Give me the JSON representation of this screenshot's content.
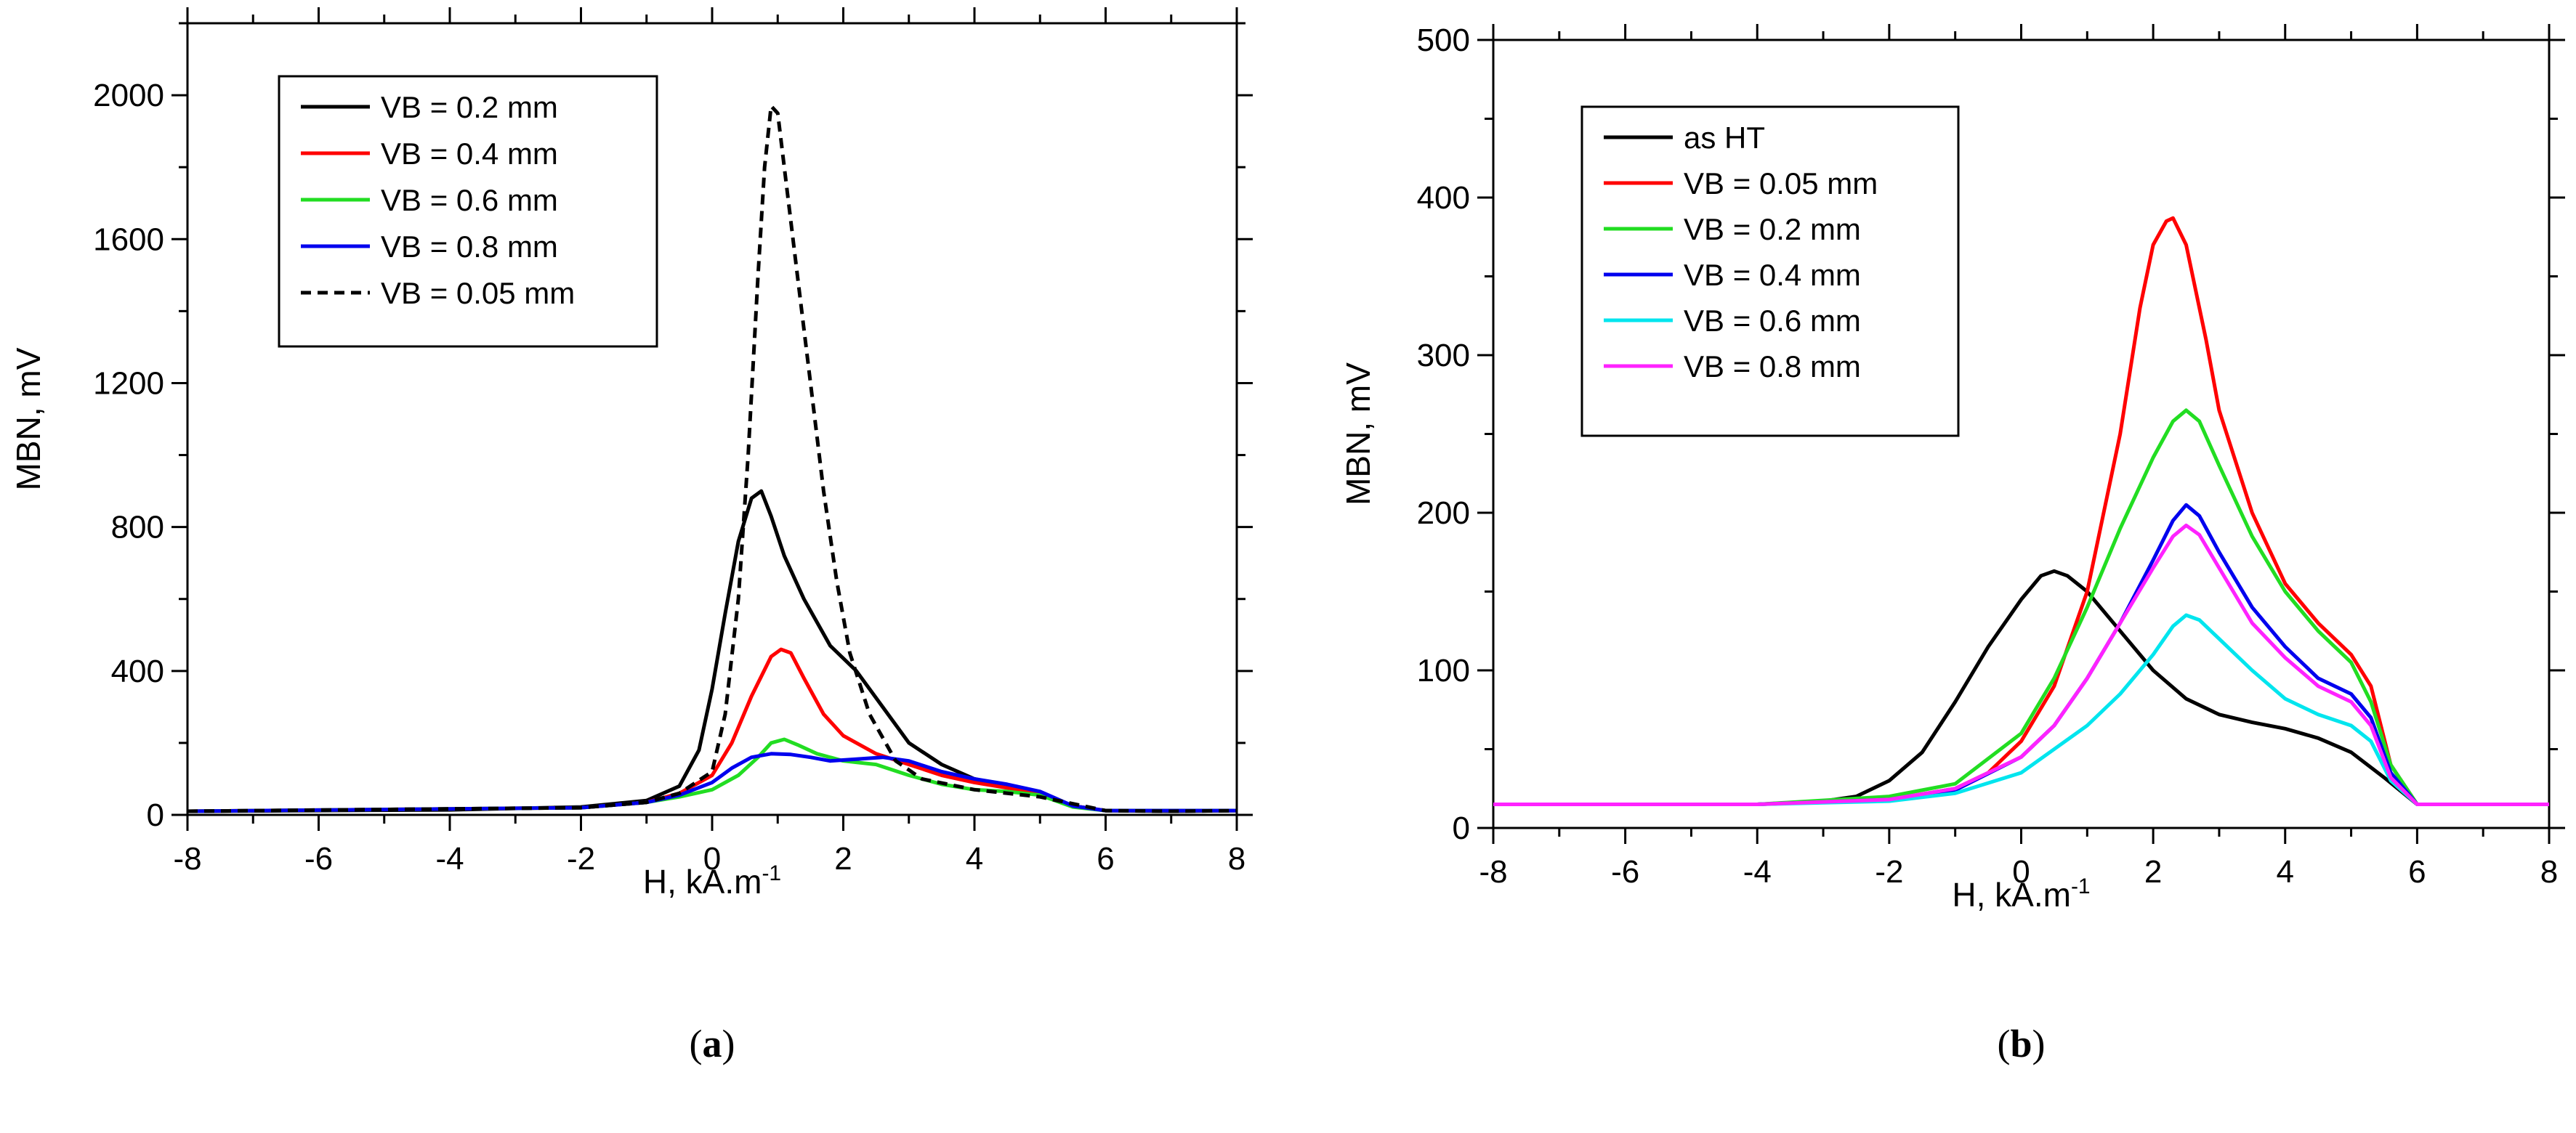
{
  "chart_data": [
    {
      "type": "line",
      "panel": "a",
      "caption": "(a)",
      "xlabel_main": "H, kA.m",
      "xlabel_sup": "-1",
      "ylabel": "MBN, mV",
      "xlim": [
        -8,
        8
      ],
      "ylim": [
        0,
        2200
      ],
      "xticks": [
        -8,
        -6,
        -4,
        -2,
        0,
        2,
        4,
        6,
        8
      ],
      "yticks": [
        0,
        400,
        800,
        1200,
        1600,
        2000
      ],
      "legend_position": "top-left",
      "series": [
        {
          "name": "VB = 0.2 mm",
          "color": "#000000",
          "dash": "solid",
          "x": [
            -8,
            -4,
            -2,
            -1,
            -0.5,
            -0.2,
            0,
            0.2,
            0.4,
            0.6,
            0.75,
            0.9,
            1.1,
            1.4,
            1.8,
            2.2,
            2.6,
            3.0,
            3.5,
            4.0,
            4.5,
            5.0,
            5.5,
            6.0,
            7,
            8
          ],
          "y": [
            10,
            14,
            22,
            40,
            80,
            180,
            350,
            560,
            760,
            880,
            900,
            830,
            720,
            600,
            470,
            400,
            300,
            200,
            140,
            100,
            80,
            60,
            25,
            12,
            10,
            12
          ]
        },
        {
          "name": "VB = 0.4 mm",
          "color": "#ff0000",
          "dash": "solid",
          "x": [
            -8,
            -2,
            -1,
            -0.5,
            0,
            0.3,
            0.6,
            0.9,
            1.05,
            1.2,
            1.4,
            1.7,
            2.0,
            2.5,
            3.0,
            3.5,
            4.0,
            4.5,
            5.0,
            5.5,
            6.0,
            8
          ],
          "y": [
            10,
            20,
            35,
            60,
            110,
            200,
            330,
            440,
            460,
            450,
            380,
            280,
            220,
            170,
            140,
            110,
            90,
            75,
            60,
            25,
            12,
            12
          ]
        },
        {
          "name": "VB = 0.6 mm",
          "color": "#22dd22",
          "dash": "solid",
          "x": [
            -8,
            -2,
            -1,
            -0.5,
            0,
            0.4,
            0.7,
            0.9,
            1.1,
            1.3,
            1.6,
            2.0,
            2.5,
            3.0,
            3.5,
            4.0,
            4.5,
            5.0,
            5.5,
            6.0,
            8
          ],
          "y": [
            10,
            20,
            35,
            50,
            70,
            110,
            160,
            200,
            210,
            195,
            170,
            150,
            140,
            110,
            85,
            70,
            65,
            55,
            22,
            12,
            12
          ]
        },
        {
          "name": "VB = 0.8 mm",
          "color": "#0000ee",
          "dash": "solid",
          "x": [
            -8,
            -2,
            -1,
            -0.5,
            0,
            0.3,
            0.6,
            0.9,
            1.2,
            1.5,
            1.8,
            2.2,
            2.6,
            3.0,
            3.5,
            4.0,
            4.5,
            5.0,
            5.5,
            6.0,
            8
          ],
          "y": [
            10,
            20,
            35,
            55,
            90,
            130,
            160,
            170,
            168,
            160,
            150,
            155,
            160,
            150,
            120,
            100,
            85,
            65,
            25,
            12,
            12
          ]
        },
        {
          "name": "VB = 0.05 mm",
          "color": "#000000",
          "dash": "dashed",
          "x": [
            -8,
            -2,
            -1,
            -0.5,
            0,
            0.2,
            0.4,
            0.55,
            0.7,
            0.8,
            0.9,
            1.0,
            1.1,
            1.3,
            1.5,
            1.7,
            1.9,
            2.1,
            2.4,
            2.8,
            3.2,
            4,
            5,
            6,
            7,
            8
          ],
          "y": [
            10,
            20,
            35,
            60,
            120,
            280,
            600,
            1000,
            1500,
            1800,
            1970,
            1950,
            1800,
            1500,
            1200,
            900,
            650,
            450,
            280,
            150,
            100,
            70,
            50,
            12,
            10,
            12
          ]
        }
      ]
    },
    {
      "type": "line",
      "panel": "b",
      "caption": "(b)",
      "xlabel_main": "H, kA.m",
      "xlabel_sup": "-1",
      "ylabel": "MBN, mV",
      "xlim": [
        -8,
        8
      ],
      "ylim": [
        0,
        500
      ],
      "xticks": [
        -8,
        -6,
        -4,
        -2,
        0,
        2,
        4,
        6,
        8
      ],
      "yticks": [
        0,
        100,
        200,
        300,
        400,
        500
      ],
      "legend_position": "top-left",
      "series": [
        {
          "name": "as HT",
          "color": "#000000",
          "dash": "solid",
          "x": [
            -8,
            -4,
            -3,
            -2.5,
            -2,
            -1.5,
            -1,
            -0.5,
            0,
            0.3,
            0.5,
            0.7,
            1.0,
            1.5,
            2.0,
            2.5,
            3.0,
            3.5,
            4.0,
            4.5,
            5.0,
            5.5,
            6.0,
            8
          ],
          "y": [
            15,
            15,
            17,
            20,
            30,
            48,
            80,
            115,
            145,
            160,
            163,
            160,
            150,
            125,
            100,
            82,
            72,
            67,
            63,
            57,
            48,
            32,
            15,
            15
          ]
        },
        {
          "name": "VB = 0.05 mm",
          "color": "#ff0000",
          "dash": "solid",
          "x": [
            -8,
            -4,
            -2,
            -1,
            -0.5,
            0,
            0.5,
            1.0,
            1.5,
            1.8,
            2.0,
            2.2,
            2.3,
            2.5,
            2.8,
            3.0,
            3.5,
            4.0,
            4.5,
            5.0,
            5.3,
            5.6,
            6.0,
            8
          ],
          "y": [
            15,
            15,
            18,
            25,
            35,
            55,
            90,
            150,
            250,
            330,
            370,
            385,
            387,
            370,
            310,
            265,
            200,
            155,
            130,
            110,
            90,
            40,
            15,
            15
          ]
        },
        {
          "name": "VB = 0.2 mm",
          "color": "#22dd22",
          "dash": "solid",
          "x": [
            -8,
            -4,
            -2,
            -1,
            0,
            0.5,
            1.0,
            1.5,
            2.0,
            2.3,
            2.5,
            2.7,
            3.0,
            3.5,
            4.0,
            4.5,
            5.0,
            5.3,
            5.6,
            6.0,
            8
          ],
          "y": [
            15,
            15,
            20,
            28,
            60,
            95,
            140,
            190,
            235,
            258,
            265,
            258,
            230,
            185,
            150,
            125,
            105,
            80,
            40,
            15,
            15
          ]
        },
        {
          "name": "VB = 0.4 mm",
          "color": "#0000ee",
          "dash": "solid",
          "x": [
            -8,
            -4,
            -2,
            -1,
            0,
            0.5,
            1.0,
            1.5,
            2.0,
            2.3,
            2.5,
            2.7,
            3.0,
            3.5,
            4.0,
            4.5,
            5.0,
            5.3,
            5.6,
            6.0,
            8
          ],
          "y": [
            15,
            15,
            18,
            24,
            45,
            65,
            95,
            130,
            170,
            195,
            205,
            198,
            175,
            140,
            115,
            95,
            85,
            70,
            35,
            15,
            15
          ]
        },
        {
          "name": "VB = 0.6 mm",
          "color": "#00e5ee",
          "dash": "solid",
          "x": [
            -8,
            -4,
            -2,
            -1,
            0,
            0.5,
            1.0,
            1.5,
            2.0,
            2.3,
            2.5,
            2.7,
            3.0,
            3.5,
            4.0,
            4.5,
            5.0,
            5.3,
            5.6,
            6.0,
            8
          ],
          "y": [
            15,
            15,
            17,
            22,
            35,
            50,
            65,
            85,
            110,
            128,
            135,
            132,
            120,
            100,
            82,
            72,
            65,
            55,
            30,
            15,
            15
          ]
        },
        {
          "name": "VB = 0.8 mm",
          "color": "#ff22ff",
          "dash": "solid",
          "x": [
            -8,
            -4,
            -2,
            -1,
            0,
            0.5,
            1.0,
            1.5,
            2.0,
            2.3,
            2.5,
            2.7,
            3.0,
            3.5,
            4.0,
            4.5,
            5.0,
            5.3,
            5.6,
            6.0,
            8
          ],
          "y": [
            15,
            15,
            18,
            25,
            45,
            65,
            95,
            130,
            165,
            185,
            192,
            186,
            165,
            130,
            108,
            90,
            80,
            65,
            32,
            15,
            15
          ]
        }
      ]
    }
  ]
}
